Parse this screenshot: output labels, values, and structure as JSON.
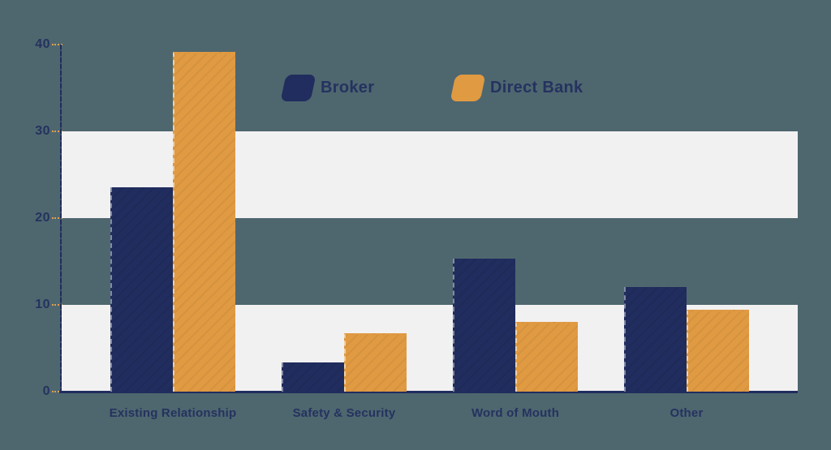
{
  "colors": {
    "background": "#4e676f",
    "band": "#f2f1f2",
    "broker": "#202d5e",
    "direct_bank": "#e09a42",
    "axis": "#202d5e",
    "tick_dash": "#df9f4c",
    "label_text": "#25325f"
  },
  "legend": {
    "items": [
      {
        "label": "Broker",
        "color_key": "broker"
      },
      {
        "label": "Direct Bank",
        "color_key": "direct_bank"
      }
    ]
  },
  "chart_data": {
    "type": "bar",
    "title": "",
    "xlabel": "",
    "ylabel": "",
    "categories": [
      "Existing Relationship",
      "Safety & Security",
      "Word of Mouth",
      "Other"
    ],
    "series": [
      {
        "name": "Broker",
        "color": "#202d5e",
        "values": [
          23.6,
          3.4,
          15.3,
          12.1
        ]
      },
      {
        "name": "Direct Bank",
        "color": "#e09a42",
        "values": [
          39.2,
          6.7,
          8.0,
          9.4
        ]
      }
    ],
    "ylim": [
      0,
      40
    ],
    "yticks": [
      0,
      10,
      20,
      30,
      40
    ],
    "grid": "alternating horizontal light bands covering 0-10 and 20-30",
    "legend_position": "top-center"
  }
}
